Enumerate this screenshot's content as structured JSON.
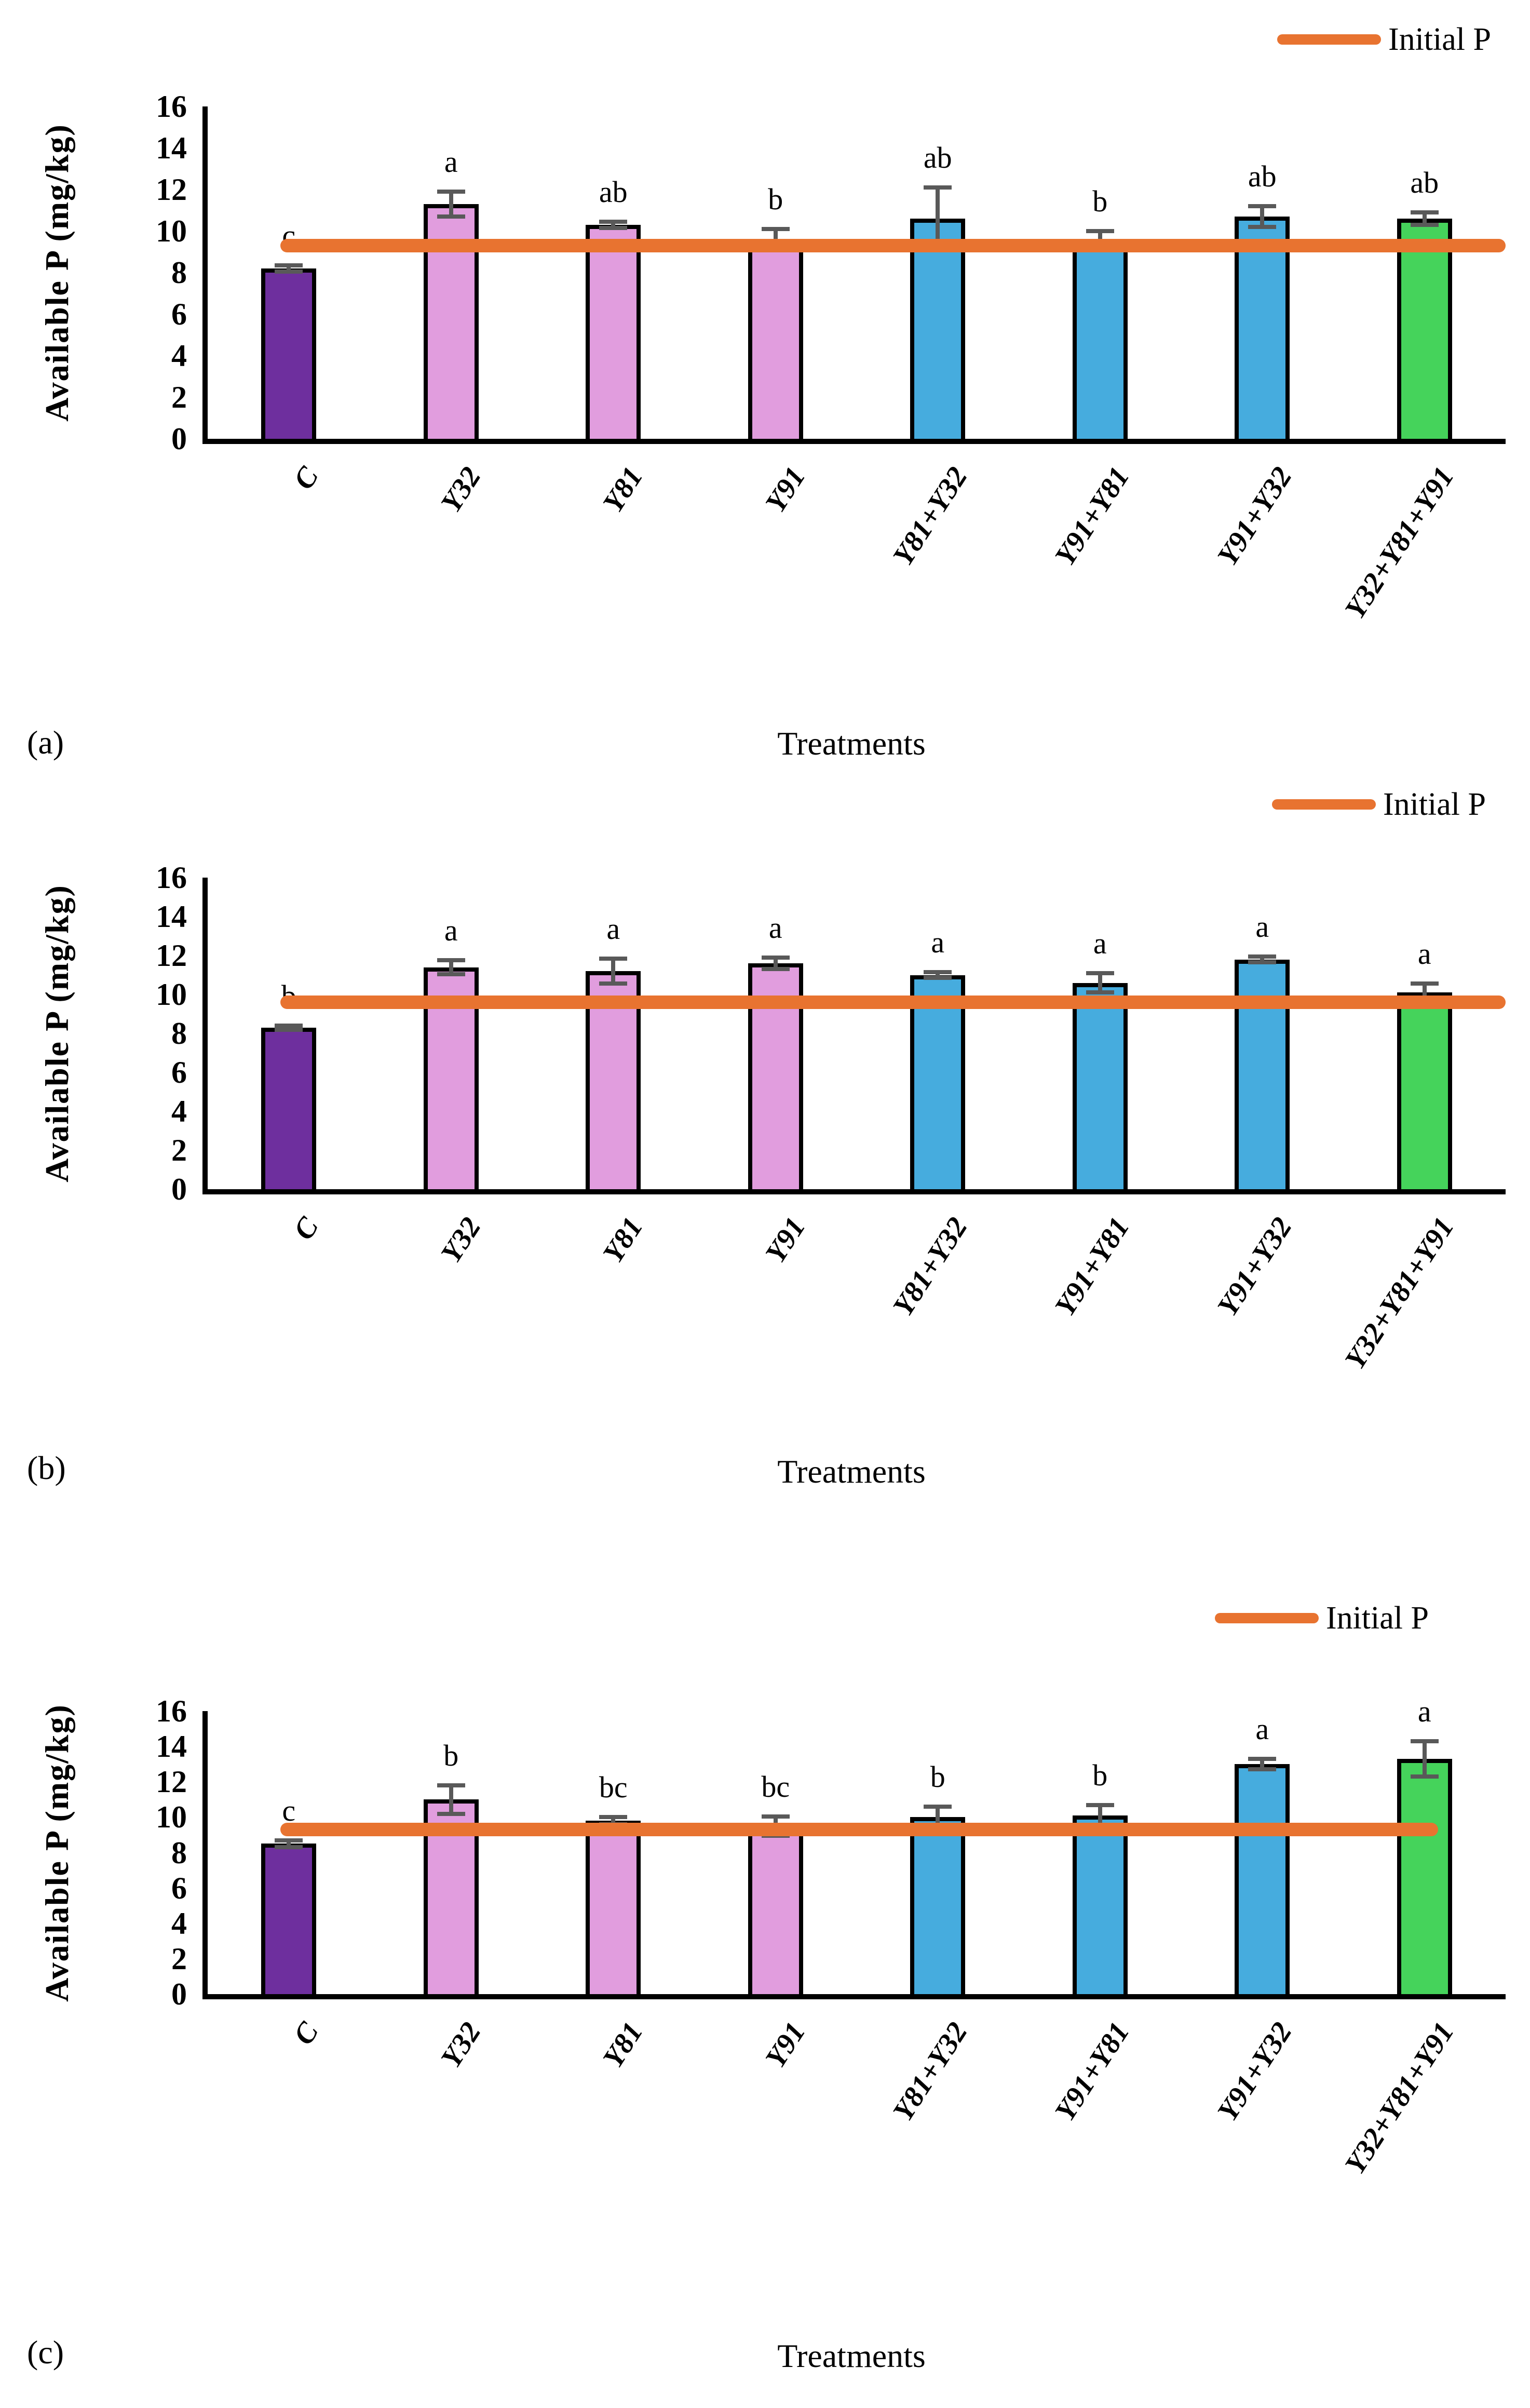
{
  "figure": {
    "legend_label": "Initial P",
    "ylabel": "Available P (mg/kg)",
    "xlabel": "Treatments"
  },
  "panels": [
    {
      "caption": "(a)",
      "legend_label": "Initial P",
      "ylabel": "Available P (mg/kg)",
      "xlabel": "Treatments"
    },
    {
      "caption": "(b)",
      "legend_label": "Initial P",
      "ylabel": "Available P (mg/kg)",
      "xlabel": "Treatments"
    },
    {
      "caption": "(c)",
      "legend_label": "Initial P",
      "ylabel": "Available P (mg/kg)",
      "xlabel": "Treatments"
    }
  ],
  "color_map": {
    "purple": "#6E2F9E",
    "pink": "#E19DDE",
    "blue": "#46ACDE",
    "green": "#45D35B"
  },
  "line_color": "#E87330",
  "error_color": "#595959",
  "chart_data": [
    {
      "type": "bar",
      "panel": "a",
      "title": "",
      "xlabel": "Treatments",
      "ylabel": "Available P (mg/kg)",
      "ylim": [
        0,
        16
      ],
      "yticks": [
        0,
        2,
        4,
        6,
        8,
        10,
        12,
        14,
        16
      ],
      "grid": false,
      "legend": "Initial P",
      "legend_position": "top-right",
      "categories": [
        "C",
        "Y32",
        "Y81",
        "Y91",
        "Y81+Y32",
        "Y91+Y81",
        "Y91+Y32",
        "Y32+Y81+Y91"
      ],
      "values": [
        8.2,
        11.3,
        10.3,
        9.6,
        10.6,
        9.6,
        10.7,
        10.6
      ],
      "errors": [
        0.15,
        0.6,
        0.15,
        0.5,
        1.5,
        0.4,
        0.5,
        0.3
      ],
      "sig_letters": [
        "c",
        "a",
        "ab",
        "b",
        "ab",
        "b",
        "ab",
        "ab"
      ],
      "bar_colors": [
        "purple",
        "pink",
        "pink",
        "pink",
        "blue",
        "blue",
        "blue",
        "green"
      ],
      "initial_p_line": 9.3
    },
    {
      "type": "bar",
      "panel": "b",
      "title": "",
      "xlabel": "Treatments",
      "ylabel": "Available P (mg/kg)",
      "ylim": [
        0,
        16
      ],
      "yticks": [
        0,
        2,
        4,
        6,
        8,
        10,
        12,
        14,
        16
      ],
      "grid": false,
      "legend": "Initial P",
      "legend_position": "top-right",
      "categories": [
        "C",
        "Y32",
        "Y81",
        "Y91",
        "Y81+Y32",
        "Y91+Y81",
        "Y91+Y32",
        "Y32+Y81+Y91"
      ],
      "values": [
        8.3,
        11.4,
        11.2,
        11.6,
        11.0,
        10.6,
        11.8,
        10.1
      ],
      "errors": [
        0.1,
        0.35,
        0.65,
        0.3,
        0.15,
        0.5,
        0.15,
        0.45
      ],
      "sig_letters": [
        "b",
        "a",
        "a",
        "a",
        "a",
        "a",
        "a",
        "a"
      ],
      "bar_colors": [
        "purple",
        "pink",
        "pink",
        "pink",
        "blue",
        "blue",
        "blue",
        "green"
      ],
      "initial_p_line": 9.6
    },
    {
      "type": "bar",
      "panel": "c",
      "title": "",
      "xlabel": "Treatments",
      "ylabel": "Available P (mg/kg)",
      "ylim": [
        0,
        16
      ],
      "yticks": [
        0,
        2,
        4,
        6,
        8,
        10,
        12,
        14,
        16
      ],
      "grid": false,
      "legend": "Initial P",
      "legend_position": "top-right",
      "categories": [
        "C",
        "Y32",
        "Y81",
        "Y91",
        "Y81+Y32",
        "Y91+Y81",
        "Y91+Y32",
        "Y32+Y81+Y91"
      ],
      "values": [
        8.5,
        11.0,
        9.8,
        9.5,
        10.0,
        10.1,
        13.0,
        13.3
      ],
      "errors": [
        0.2,
        0.8,
        0.2,
        0.55,
        0.6,
        0.6,
        0.3,
        1.0
      ],
      "sig_letters": [
        "c",
        "b",
        "bc",
        "bc",
        "b",
        "b",
        "a",
        "a"
      ],
      "bar_colors": [
        "purple",
        "pink",
        "pink",
        "pink",
        "blue",
        "blue",
        "blue",
        "green"
      ],
      "initial_p_line": 9.3
    }
  ]
}
